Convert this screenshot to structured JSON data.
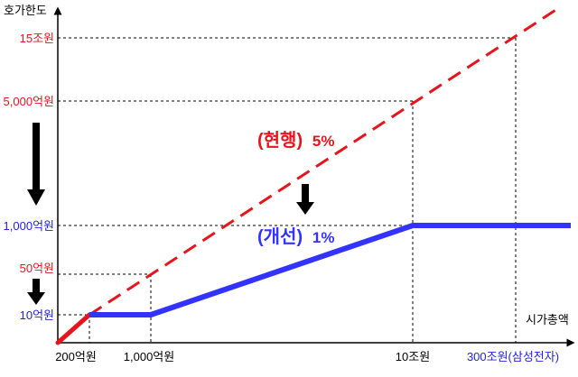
{
  "chart_data": {
    "type": "line",
    "y_axis_title": "호가한도",
    "x_axis_title": "시가총액",
    "y_tick_labels": [
      {
        "text": "15조원",
        "color": "#e8141c"
      },
      {
        "text": "5,000억원",
        "color": "#e8141c"
      },
      {
        "text": "1,000억원",
        "color": "#2222dd"
      },
      {
        "text": "50억원",
        "color": "#e8141c"
      },
      {
        "text": "10억원",
        "color": "#2222dd"
      }
    ],
    "x_tick_labels": [
      {
        "text": "200억원",
        "color": "#000000"
      },
      {
        "text": "1,000억원",
        "color": "#000000"
      },
      {
        "text": "10조원",
        "color": "#000000"
      },
      {
        "text": "300조원(삼성전자)",
        "color": "#2222dd"
      }
    ],
    "series": [
      {
        "name": "(현행) 5%",
        "label_text": "(현행)",
        "label_pct": "5%",
        "style": "dashed",
        "color": "#e8141c",
        "points": [
          [
            "0",
            "0"
          ],
          [
            "200억원",
            "10억원"
          ],
          [
            "1,000억원",
            "50억원"
          ],
          [
            "10조원",
            "5,000억원"
          ],
          [
            "300조원",
            "15조원"
          ]
        ]
      },
      {
        "name": "(개선) 1%",
        "label_text": "(개선)",
        "label_pct": "1%",
        "style": "solid",
        "color": "#3333ff",
        "points": [
          [
            "0",
            "0"
          ],
          [
            "200억원",
            "10억원"
          ],
          [
            "1,000억원",
            "10억원"
          ],
          [
            "10조원",
            "1,000억원"
          ],
          [
            "300조원",
            "1,000억원"
          ]
        ]
      }
    ]
  }
}
